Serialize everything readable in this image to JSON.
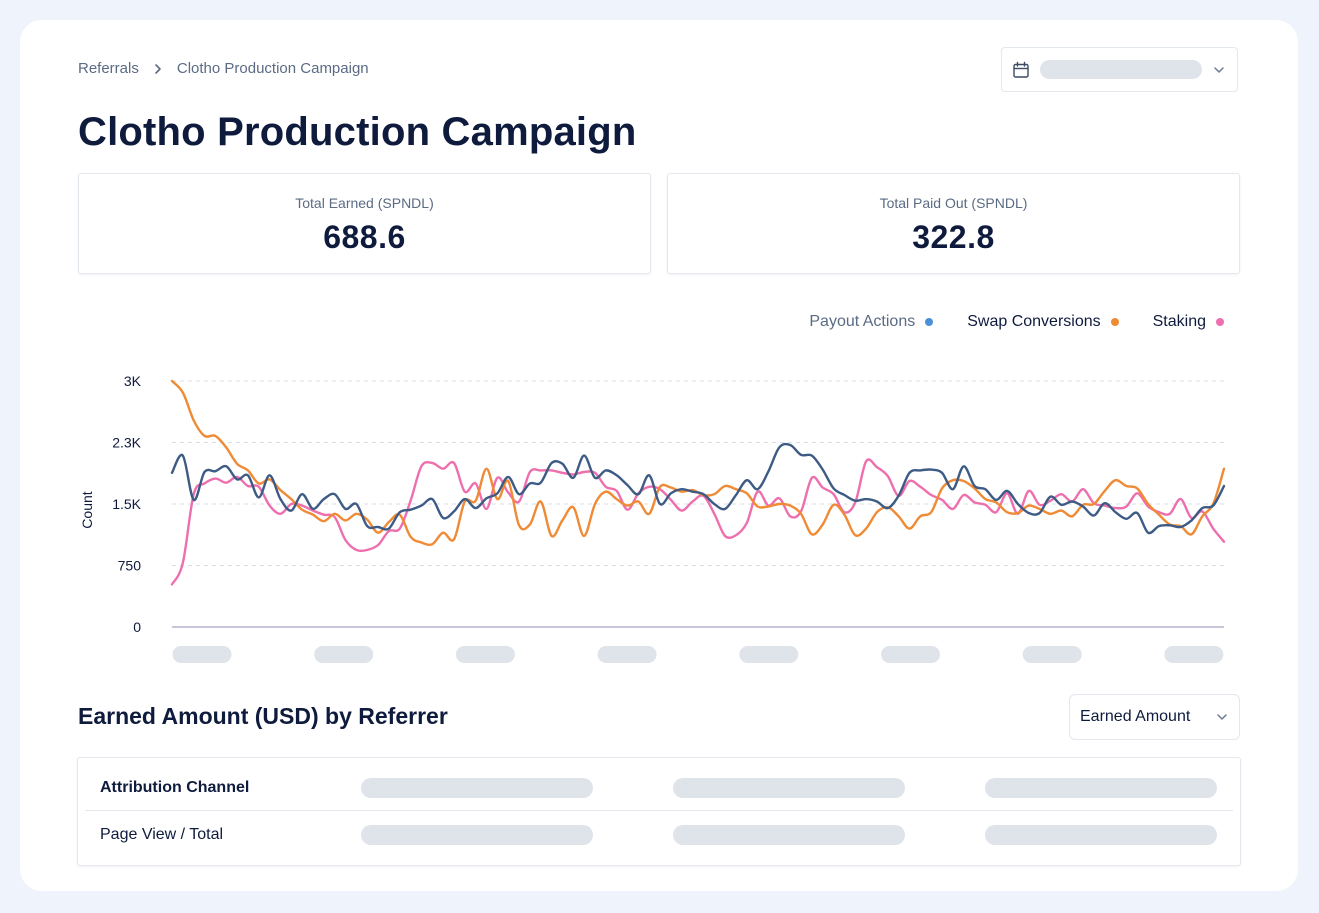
{
  "breadcrumb": {
    "parent": "Referrals",
    "current": "Clotho Production Campaign"
  },
  "page_title": "Clotho Production Campaign",
  "stats": [
    {
      "label": "Total Earned (SPNDL)",
      "value": "688.6"
    },
    {
      "label": "Total Paid Out (SPNDL)",
      "value": "322.8"
    }
  ],
  "icons": {
    "date_picker": "calendar-icon",
    "dropdown": "chevron-down-icon",
    "breadcrumb_separator": "chevron-right-icon"
  },
  "colors": {
    "payout_actions": "#4a90d9",
    "swap_conversions": "#ef8a35",
    "staking": "#ee6fad",
    "payout_line": "#3d5b85"
  },
  "chart_data": {
    "type": "line",
    "ylabel": "Count",
    "ylim": [
      0,
      3000
    ],
    "yticks": [
      "0",
      "750",
      "1.5K",
      "2.3K",
      "3K"
    ],
    "ytick_values": [
      0,
      750,
      1500,
      2250,
      3000
    ],
    "grid": true,
    "legend_position": "top-right",
    "legend": [
      {
        "name": "Payout Actions",
        "muted": true
      },
      {
        "name": "Swap Conversions",
        "muted": false
      },
      {
        "name": "Staking",
        "muted": false
      }
    ],
    "series": [
      {
        "name": "Payout Actions",
        "color": "#3d5b85",
        "values": [
          1880,
          2090,
          1550,
          1890,
          1900,
          1960,
          1800,
          1850,
          1580,
          1850,
          1560,
          1420,
          1620,
          1440,
          1560,
          1620,
          1440,
          1500,
          1230,
          1220,
          1200,
          1400,
          1430,
          1480,
          1560,
          1330,
          1410,
          1560,
          1450,
          1570,
          1630,
          1830,
          1620,
          1750,
          1760,
          2000,
          1990,
          1820,
          2090,
          1820,
          1910,
          1850,
          1730,
          1620,
          1850,
          1500,
          1630,
          1680,
          1650,
          1620,
          1500,
          1440,
          1610,
          1790,
          1680,
          1900,
          2190,
          2220,
          2100,
          2090,
          1920,
          1690,
          1610,
          1540,
          1560,
          1530,
          1450,
          1600,
          1880,
          1910,
          1920,
          1880,
          1680,
          1960,
          1720,
          1680,
          1550,
          1660,
          1500,
          1390,
          1390,
          1590,
          1490,
          1530,
          1470,
          1360,
          1510,
          1400,
          1320,
          1390,
          1150,
          1230,
          1240,
          1220,
          1300,
          1450,
          1480,
          1720
        ]
      },
      {
        "name": "Swap Conversions",
        "color": "#ef8a35",
        "values": [
          3000,
          2860,
          2520,
          2330,
          2330,
          2190,
          1990,
          1910,
          1750,
          1800,
          1670,
          1560,
          1430,
          1370,
          1290,
          1380,
          1300,
          1380,
          1310,
          1150,
          1280,
          1370,
          1100,
          1030,
          1010,
          1150,
          1070,
          1530,
          1540,
          1930,
          1560,
          1780,
          1240,
          1250,
          1530,
          1110,
          1300,
          1460,
          1110,
          1500,
          1650,
          1560,
          1480,
          1530,
          1380,
          1710,
          1700,
          1650,
          1670,
          1610,
          1620,
          1720,
          1680,
          1630,
          1470,
          1470,
          1500,
          1480,
          1380,
          1130,
          1250,
          1490,
          1370,
          1120,
          1200,
          1400,
          1460,
          1350,
          1200,
          1350,
          1400,
          1690,
          1790,
          1780,
          1690,
          1560,
          1520,
          1400,
          1390,
          1480,
          1440,
          1380,
          1420,
          1350,
          1490,
          1500,
          1660,
          1790,
          1720,
          1690,
          1500,
          1370,
          1250,
          1230,
          1130,
          1350,
          1500,
          1930
        ]
      },
      {
        "name": "Staking",
        "color": "#ee6fad",
        "values": [
          520,
          780,
          1620,
          1750,
          1810,
          1760,
          1830,
          1720,
          1710,
          1480,
          1380,
          1500,
          1480,
          1420,
          1370,
          1340,
          1060,
          940,
          940,
          1000,
          1170,
          1200,
          1540,
          1960,
          2000,
          1930,
          2000,
          1650,
          1750,
          1440,
          1820,
          1640,
          1530,
          1890,
          1910,
          1910,
          1880,
          1860,
          1890,
          1880,
          1710,
          1660,
          1430,
          1630,
          1710,
          1680,
          1550,
          1420,
          1530,
          1600,
          1380,
          1110,
          1120,
          1270,
          1650,
          1480,
          1570,
          1350,
          1410,
          1820,
          1700,
          1620,
          1400,
          1520,
          2020,
          1950,
          1840,
          1600,
          1780,
          1710,
          1610,
          1550,
          1440,
          1610,
          1520,
          1490,
          1400,
          1630,
          1380,
          1660,
          1490,
          1540,
          1620,
          1530,
          1680,
          1510,
          1480,
          1450,
          1470,
          1630,
          1470,
          1400,
          1380,
          1560,
          1330,
          1410,
          1200,
          1040
        ]
      }
    ]
  },
  "section_title": "Earned Amount (USD) by Referrer",
  "metric_select": {
    "value": "Earned Amount"
  },
  "table": {
    "rows": [
      "Attribution Channel",
      "Page View / Total"
    ]
  }
}
